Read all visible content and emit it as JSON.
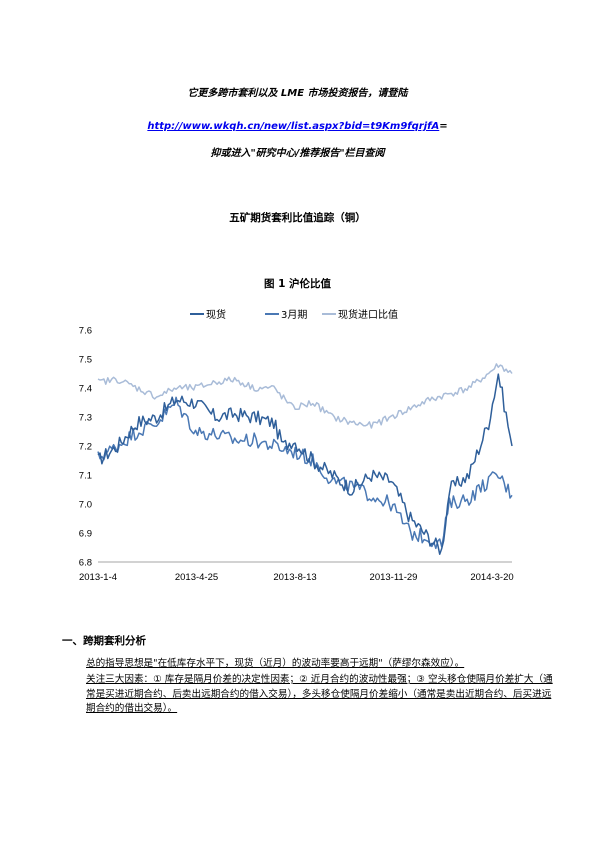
{
  "promo": {
    "line1": "它更多跨市套利以及 LME 市场投资报告，请登陆",
    "url": "http://www.wkqh.cn/new/list.aspx?bid=t9Km9fqrjfA",
    "url_suffix": "=",
    "line3": "抑或进入\"研究中心/推荐报告\"栏目查阅"
  },
  "doc_title": "五矿期货套利比值追踪（铜）",
  "figure_caption": "图 1    沪伦比值",
  "chart_data": {
    "type": "line",
    "legend": [
      "现货",
      "3月期",
      "现货进口比值"
    ],
    "colors": [
      "#2f5f9a",
      "#4a78b4",
      "#a9bcd8"
    ],
    "x_ticks": [
      "2013-1-4",
      "2013-4-25",
      "2013-8-13",
      "2013-11-29",
      "2014-3-20"
    ],
    "ylim": [
      6.8,
      7.6
    ],
    "y_ticks": [
      "7.6",
      "7.5",
      "7.4",
      "7.3",
      "7.2",
      "7.1",
      "7.0",
      "6.9",
      "6.8"
    ],
    "series": [
      {
        "name": "现货",
        "anchors": [
          [
            0,
            7.15
          ],
          [
            10,
            7.2
          ],
          [
            20,
            7.28
          ],
          [
            30,
            7.3
          ],
          [
            40,
            7.36
          ],
          [
            50,
            7.35
          ],
          [
            60,
            7.3
          ],
          [
            70,
            7.31
          ],
          [
            80,
            7.3
          ],
          [
            90,
            7.28
          ],
          [
            95,
            7.2
          ],
          [
            100,
            7.22
          ],
          [
            110,
            7.15
          ],
          [
            120,
            7.1
          ],
          [
            130,
            7.05
          ],
          [
            140,
            7.1
          ],
          [
            150,
            7.08
          ],
          [
            160,
            6.95
          ],
          [
            170,
            6.88
          ],
          [
            176,
            6.84
          ],
          [
            180,
            7.05
          ],
          [
            190,
            7.1
          ],
          [
            200,
            7.28
          ],
          [
            205,
            7.45
          ],
          [
            212,
            7.2
          ]
        ]
      },
      {
        "name": "3月期",
        "anchors": [
          [
            0,
            7.16
          ],
          [
            10,
            7.2
          ],
          [
            20,
            7.25
          ],
          [
            30,
            7.28
          ],
          [
            40,
            7.35
          ],
          [
            50,
            7.25
          ],
          [
            60,
            7.24
          ],
          [
            70,
            7.22
          ],
          [
            80,
            7.22
          ],
          [
            90,
            7.2
          ],
          [
            100,
            7.18
          ],
          [
            110,
            7.15
          ],
          [
            120,
            7.08
          ],
          [
            130,
            7.06
          ],
          [
            140,
            7.03
          ],
          [
            150,
            7.0
          ],
          [
            160,
            6.9
          ],
          [
            170,
            6.88
          ],
          [
            176,
            6.86
          ],
          [
            180,
            7.0
          ],
          [
            190,
            7.02
          ],
          [
            200,
            7.08
          ],
          [
            205,
            7.1
          ],
          [
            212,
            7.03
          ]
        ]
      },
      {
        "name": "现货进口比值",
        "anchors": [
          [
            0,
            7.42
          ],
          [
            10,
            7.43
          ],
          [
            20,
            7.4
          ],
          [
            30,
            7.37
          ],
          [
            40,
            7.4
          ],
          [
            50,
            7.4
          ],
          [
            60,
            7.42
          ],
          [
            70,
            7.43
          ],
          [
            80,
            7.4
          ],
          [
            90,
            7.4
          ],
          [
            100,
            7.33
          ],
          [
            110,
            7.35
          ],
          [
            120,
            7.3
          ],
          [
            130,
            7.28
          ],
          [
            140,
            7.27
          ],
          [
            150,
            7.3
          ],
          [
            160,
            7.33
          ],
          [
            170,
            7.36
          ],
          [
            180,
            7.38
          ],
          [
            190,
            7.4
          ],
          [
            200,
            7.45
          ],
          [
            205,
            7.48
          ],
          [
            212,
            7.45
          ]
        ]
      }
    ]
  },
  "section1": {
    "title": "一、跨期套利分析",
    "p1": "总的指导思想是\"在低库存水平下，现货（近月）的波动率要高于远期\"（萨缪尔森效应）。",
    "p2": "关注三大因素：① 库存是隔月价差的决定性因素；② 近月合约的波动性最强；③ 空头移仓使隔月价差扩大（通常是买进近期合约、后卖出远期合约的借入交易），多头移仓使隔月价差缩小（通常是卖出近期合约、后买进远期合约的借出交易）。"
  }
}
